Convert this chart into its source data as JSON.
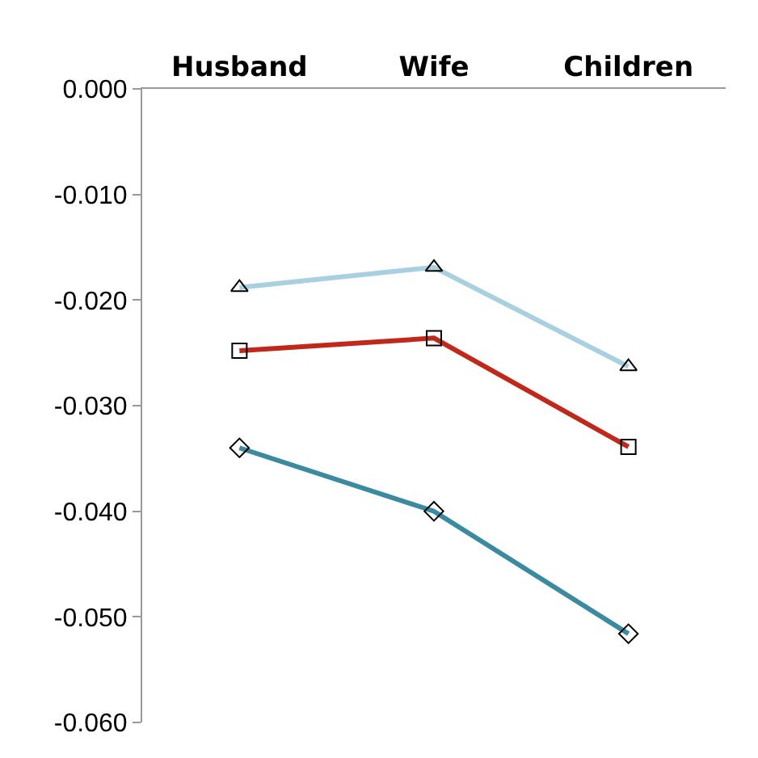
{
  "chart_data": {
    "type": "line",
    "categories": [
      "Husband",
      "Wife",
      "Children"
    ],
    "series": [
      {
        "color": "#a8d0e0",
        "marker": "triangle",
        "values": [
          -0.0188,
          -0.0169,
          -0.0263
        ]
      },
      {
        "color": "#c0281c",
        "marker": "square",
        "values": [
          -0.0248,
          -0.0236,
          -0.0339
        ]
      },
      {
        "color": "#3a8aa0",
        "marker": "diamond",
        "values": [
          -0.034,
          -0.04,
          -0.0516
        ]
      }
    ],
    "ylim": [
      -0.06,
      0.0
    ],
    "yticks": [
      {
        "value": 0.0,
        "label": "0.000"
      },
      {
        "value": -0.01,
        "label": "-0.010"
      },
      {
        "value": -0.02,
        "label": "-0.020"
      },
      {
        "value": -0.03,
        "label": "-0.030"
      },
      {
        "value": -0.04,
        "label": "-0.040"
      },
      {
        "value": -0.05,
        "label": "-0.050"
      },
      {
        "value": -0.06,
        "label": "-0.060"
      }
    ],
    "legend": false,
    "line_style": "solid"
  }
}
